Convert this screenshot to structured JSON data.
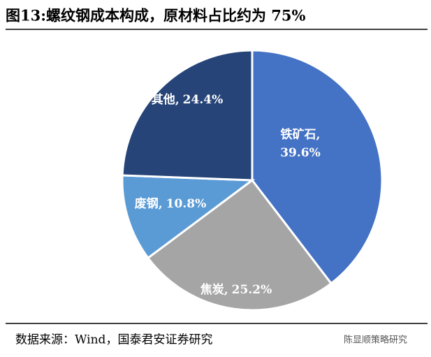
{
  "chart_data": {
    "type": "pie",
    "title": "图13:螺纹钢成本构成，原材料占比约为 75%",
    "categories": [
      "铁矿石,",
      "焦炭,",
      "废钢,",
      "其他,"
    ],
    "values": [
      39.6,
      25.2,
      10.8,
      24.4
    ],
    "value_labels": [
      "39.6%",
      "25.2%",
      "10.8%",
      "24.4%"
    ],
    "colors": [
      "#4472c4",
      "#a5a5a5",
      "#5b9bd5",
      "#264478"
    ],
    "source": "数据来源：Wind，国泰君安证券研究",
    "watermark": "陈显顺策略研究"
  }
}
